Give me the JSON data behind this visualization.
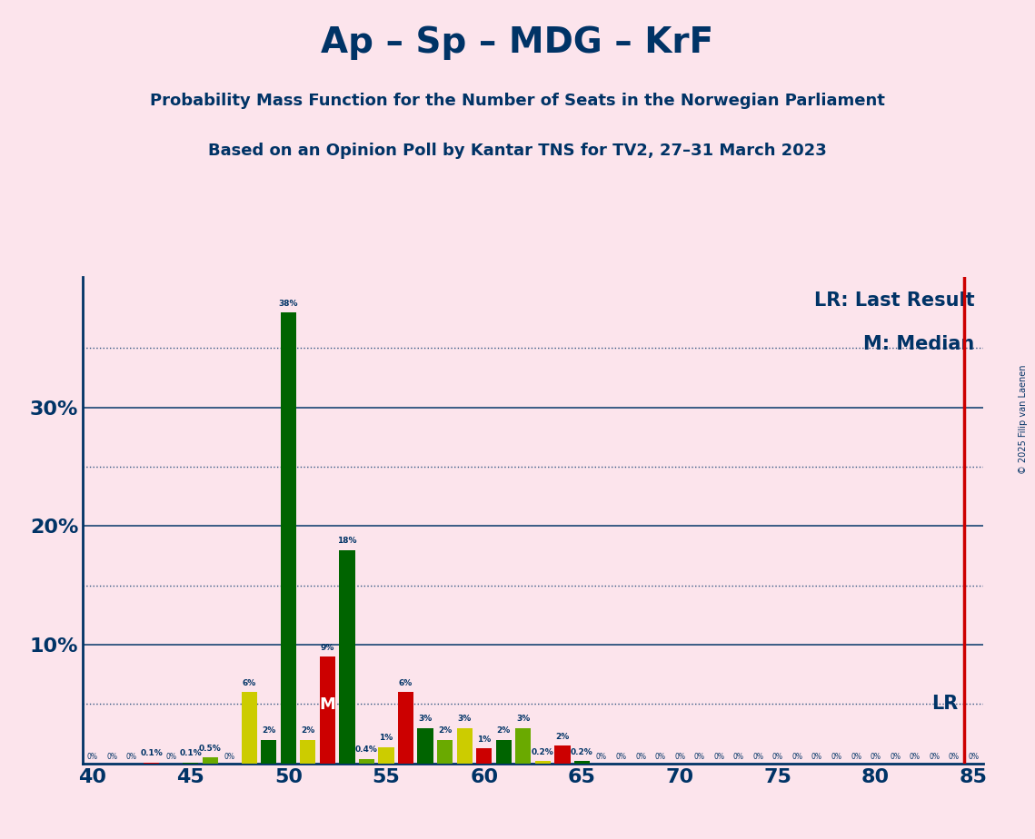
{
  "title": "Ap – Sp – MDG – KrF",
  "subtitle1": "Probability Mass Function for the Number of Seats in the Norwegian Parliament",
  "subtitle2": "Based on an Opinion Poll by Kantar TNS for TV2, 27–31 March 2023",
  "copyright": "© 2025 Filip van Laenen",
  "legend_lr": "LR: Last Result",
  "legend_m": "M: Median",
  "lr_label": "LR",
  "median_label": "M",
  "background_color": "#fce4ec",
  "title_color": "#003366",
  "lr_line_color": "#cc0000",
  "xlim": [
    39.5,
    85.5
  ],
  "ylim": [
    0,
    41
  ],
  "lr_seat": 84.5,
  "median_seat": 52,
  "bars": [
    {
      "seat": 40,
      "value": 0.0,
      "color": "#cccc00"
    },
    {
      "seat": 41,
      "value": 0.0,
      "color": "#006400"
    },
    {
      "seat": 42,
      "value": 0.0,
      "color": "#6aaa00"
    },
    {
      "seat": 43,
      "value": 0.1,
      "color": "#cc0000"
    },
    {
      "seat": 44,
      "value": 0.0,
      "color": "#cccc00"
    },
    {
      "seat": 45,
      "value": 0.1,
      "color": "#006400"
    },
    {
      "seat": 46,
      "value": 0.5,
      "color": "#6aaa00"
    },
    {
      "seat": 47,
      "value": 0.0,
      "color": "#cc0000"
    },
    {
      "seat": 48,
      "value": 6.0,
      "color": "#cccc00"
    },
    {
      "seat": 49,
      "value": 2.0,
      "color": "#006400"
    },
    {
      "seat": 50,
      "value": 38.0,
      "color": "#006400"
    },
    {
      "seat": 51,
      "value": 2.0,
      "color": "#cccc00"
    },
    {
      "seat": 52,
      "value": 9.0,
      "color": "#cc0000"
    },
    {
      "seat": 53,
      "value": 18.0,
      "color": "#006400"
    },
    {
      "seat": 54,
      "value": 0.4,
      "color": "#6aaa00"
    },
    {
      "seat": 55,
      "value": 1.4,
      "color": "#cccc00"
    },
    {
      "seat": 56,
      "value": 6.0,
      "color": "#cc0000"
    },
    {
      "seat": 57,
      "value": 3.0,
      "color": "#006400"
    },
    {
      "seat": 58,
      "value": 2.0,
      "color": "#6aaa00"
    },
    {
      "seat": 59,
      "value": 3.0,
      "color": "#cccc00"
    },
    {
      "seat": 60,
      "value": 1.3,
      "color": "#cc0000"
    },
    {
      "seat": 61,
      "value": 2.0,
      "color": "#006400"
    },
    {
      "seat": 62,
      "value": 3.0,
      "color": "#6aaa00"
    },
    {
      "seat": 63,
      "value": 0.2,
      "color": "#cccc00"
    },
    {
      "seat": 64,
      "value": 1.5,
      "color": "#cc0000"
    },
    {
      "seat": 65,
      "value": 0.2,
      "color": "#006400"
    },
    {
      "seat": 66,
      "value": 0.0,
      "color": "#6aaa00"
    },
    {
      "seat": 67,
      "value": 0.0,
      "color": "#cc0000"
    },
    {
      "seat": 68,
      "value": 0.0,
      "color": "#cccc00"
    },
    {
      "seat": 69,
      "value": 0.0,
      "color": "#006400"
    },
    {
      "seat": 70,
      "value": 0.0,
      "color": "#6aaa00"
    },
    {
      "seat": 71,
      "value": 0.0,
      "color": "#cc0000"
    },
    {
      "seat": 72,
      "value": 0.0,
      "color": "#cccc00"
    },
    {
      "seat": 73,
      "value": 0.0,
      "color": "#006400"
    },
    {
      "seat": 74,
      "value": 0.0,
      "color": "#6aaa00"
    },
    {
      "seat": 75,
      "value": 0.0,
      "color": "#cc0000"
    },
    {
      "seat": 76,
      "value": 0.0,
      "color": "#cccc00"
    },
    {
      "seat": 77,
      "value": 0.0,
      "color": "#006400"
    },
    {
      "seat": 78,
      "value": 0.0,
      "color": "#6aaa00"
    },
    {
      "seat": 79,
      "value": 0.0,
      "color": "#cc0000"
    },
    {
      "seat": 80,
      "value": 0.0,
      "color": "#cccc00"
    },
    {
      "seat": 81,
      "value": 0.0,
      "color": "#006400"
    },
    {
      "seat": 82,
      "value": 0.0,
      "color": "#6aaa00"
    },
    {
      "seat": 83,
      "value": 0.0,
      "color": "#cc0000"
    },
    {
      "seat": 84,
      "value": 0.0,
      "color": "#cccc00"
    },
    {
      "seat": 85,
      "value": 0.0,
      "color": "#006400"
    }
  ],
  "solid_gridlines": [
    0,
    10,
    20,
    30
  ],
  "dotted_gridlines": [
    5,
    15,
    25,
    35
  ]
}
